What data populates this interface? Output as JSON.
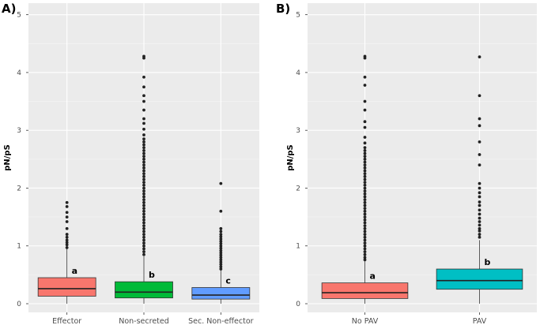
{
  "chart_data": [
    {
      "type": "box",
      "panel_label": "A)",
      "ylabel": "pN/pS",
      "ylim": [
        -0.15,
        5.2
      ],
      "yticks": [
        0,
        1,
        2,
        3,
        4,
        5
      ],
      "categories": [
        "Effector",
        "Non-secreted",
        "Sec. Non-effector"
      ],
      "colors": [
        "#f8766d",
        "#00ba38",
        "#619cff"
      ],
      "boxes": [
        {
          "category": "Effector",
          "q1": 0.13,
          "median": 0.26,
          "q3": 0.45,
          "whisker_low": 0.0,
          "whisker_high": 0.95,
          "outliers": [
            0.97,
            1.02,
            1.06,
            1.1,
            1.15,
            1.2,
            1.3,
            1.42,
            1.5,
            1.58,
            1.68,
            1.75
          ],
          "label": "a"
        },
        {
          "category": "Non-secreted",
          "q1": 0.1,
          "median": 0.2,
          "q3": 0.38,
          "whisker_low": 0.0,
          "whisker_high": 0.82,
          "outliers": [
            0.85,
            0.9,
            0.95,
            1.0,
            1.05,
            1.1,
            1.15,
            1.2,
            1.25,
            1.3,
            1.35,
            1.4,
            1.45,
            1.5,
            1.55,
            1.6,
            1.65,
            1.7,
            1.75,
            1.8,
            1.85,
            1.9,
            1.95,
            2.0,
            2.05,
            2.1,
            2.15,
            2.2,
            2.25,
            2.3,
            2.35,
            2.4,
            2.45,
            2.5,
            2.55,
            2.6,
            2.65,
            2.7,
            2.75,
            2.8,
            2.85,
            2.92,
            3.02,
            3.12,
            3.2,
            3.35,
            3.5,
            3.6,
            3.75,
            3.92,
            4.25,
            4.28
          ],
          "label": "b"
        },
        {
          "category": "Sec. Non-effector",
          "q1": 0.08,
          "median": 0.15,
          "q3": 0.28,
          "whisker_low": 0.0,
          "whisker_high": 0.58,
          "outliers": [
            0.6,
            0.64,
            0.68,
            0.72,
            0.76,
            0.8,
            0.84,
            0.88,
            0.92,
            0.96,
            1.0,
            1.04,
            1.08,
            1.12,
            1.16,
            1.2,
            1.25,
            1.3,
            1.6,
            2.08
          ],
          "label": "c"
        }
      ]
    },
    {
      "type": "box",
      "panel_label": "B)",
      "ylabel": "pN/pS",
      "ylim": [
        -0.15,
        5.2
      ],
      "yticks": [
        0,
        1,
        2,
        3,
        4,
        5
      ],
      "categories": [
        "No PAV",
        "PAV"
      ],
      "colors": [
        "#f8766d",
        "#00bfc4"
      ],
      "boxes": [
        {
          "category": "No PAV",
          "q1": 0.09,
          "median": 0.19,
          "q3": 0.36,
          "whisker_low": 0.0,
          "whisker_high": 0.74,
          "outliers": [
            0.76,
            0.8,
            0.85,
            0.9,
            0.95,
            1.0,
            1.05,
            1.1,
            1.15,
            1.2,
            1.25,
            1.3,
            1.35,
            1.4,
            1.45,
            1.5,
            1.55,
            1.6,
            1.65,
            1.7,
            1.75,
            1.8,
            1.85,
            1.9,
            1.95,
            2.0,
            2.05,
            2.1,
            2.15,
            2.2,
            2.25,
            2.3,
            2.35,
            2.4,
            2.45,
            2.5,
            2.55,
            2.6,
            2.65,
            2.7,
            2.78,
            2.88,
            3.05,
            3.15,
            3.35,
            3.5,
            3.78,
            3.92,
            4.25,
            4.28
          ],
          "label": "a"
        },
        {
          "category": "PAV",
          "q1": 0.25,
          "median": 0.4,
          "q3": 0.6,
          "whisker_low": 0.0,
          "whisker_high": 1.1,
          "outliers": [
            1.15,
            1.2,
            1.26,
            1.3,
            1.36,
            1.42,
            1.48,
            1.55,
            1.62,
            1.7,
            1.76,
            1.85,
            1.92,
            2.0,
            2.08,
            2.4,
            2.58,
            2.8,
            3.08,
            3.2,
            3.6,
            4.27
          ],
          "label": "b"
        }
      ]
    }
  ]
}
